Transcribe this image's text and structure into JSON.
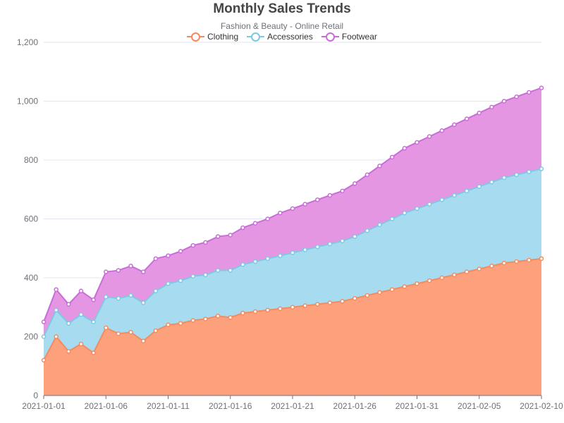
{
  "chart_data": {
    "type": "area",
    "stacked": true,
    "title": "Monthly Sales Trends",
    "subtitle": "Fashion & Beauty - Online Retail",
    "xlabel": "",
    "ylabel": "",
    "ylim": [
      0,
      1200
    ],
    "y_ticks": [
      "0",
      "200",
      "400",
      "600",
      "800",
      "1,000",
      "1,200"
    ],
    "y_tick_values": [
      0,
      200,
      400,
      600,
      800,
      1000,
      1200
    ],
    "x_tick_labels": [
      "2021-01-01",
      "2021-01-06",
      "2021-01-11",
      "2021-01-16",
      "2021-01-21",
      "2021-01-26",
      "2021-01-31",
      "2021-02-05",
      "2021-02-10"
    ],
    "x_tick_indices": [
      0,
      5,
      10,
      15,
      20,
      25,
      30,
      35,
      40
    ],
    "grid": true,
    "legend_position": "top-center",
    "series": [
      {
        "name": "Clothing",
        "color": "#f58a5e",
        "fill": "#fda17d",
        "values": [
          120,
          200,
          150,
          175,
          145,
          230,
          210,
          215,
          185,
          220,
          240,
          245,
          255,
          260,
          270,
          265,
          280,
          285,
          290,
          295,
          300,
          305,
          310,
          315,
          320,
          330,
          340,
          350,
          360,
          370,
          380,
          390,
          400,
          410,
          420,
          430,
          440,
          450,
          455,
          460,
          465
        ]
      },
      {
        "name": "Accessories",
        "color": "#7ec8e3",
        "fill": "#a6dbf0",
        "values": [
          80,
          90,
          95,
          100,
          105,
          105,
          120,
          125,
          130,
          135,
          140,
          145,
          150,
          150,
          155,
          160,
          165,
          170,
          175,
          180,
          185,
          190,
          195,
          200,
          205,
          210,
          220,
          230,
          240,
          250,
          255,
          260,
          265,
          270,
          275,
          280,
          285,
          290,
          295,
          300,
          305
        ]
      },
      {
        "name": "Footwear",
        "color": "#c86dd7",
        "fill": "#e596e2",
        "values": [
          50,
          70,
          65,
          80,
          75,
          85,
          95,
          100,
          105,
          110,
          95,
          100,
          105,
          110,
          115,
          120,
          125,
          130,
          135,
          145,
          150,
          155,
          160,
          165,
          170,
          180,
          190,
          200,
          210,
          220,
          225,
          230,
          235,
          240,
          245,
          250,
          255,
          260,
          265,
          270,
          275
        ]
      }
    ]
  }
}
